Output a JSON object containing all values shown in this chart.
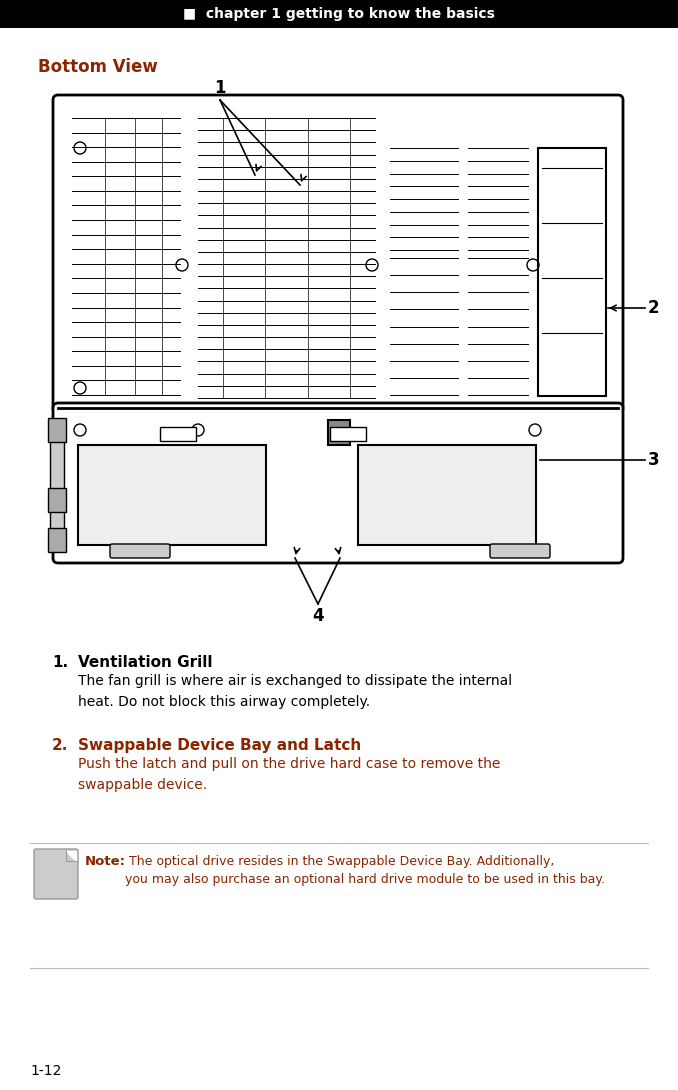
{
  "header_text": "chapter 1 getting to know the basics",
  "header_bg": "#000000",
  "header_fg": "#ffffff",
  "section_title": "Bottom View",
  "section_title_color": "#8B2500",
  "item1_title": "Ventilation Grill",
  "item1_body": "The fan grill is where air is exchanged to dissipate the internal\nheat. Do not block this airway completely.",
  "item2_title": "Swappable Device Bay and Latch",
  "item2_title_color": "#8B2500",
  "item2_body": "Push the latch and pull on the drive hard case to remove the\nswappable device.",
  "note_title": "Note:",
  "note_body": " The optical drive resides in the Swappable Device Bay. Additionally,\nyou may also purchase an optional hard drive module to be used in this bay.",
  "note_color": "#8B2500",
  "footer_text": "1-12",
  "bg_color": "#ffffff"
}
